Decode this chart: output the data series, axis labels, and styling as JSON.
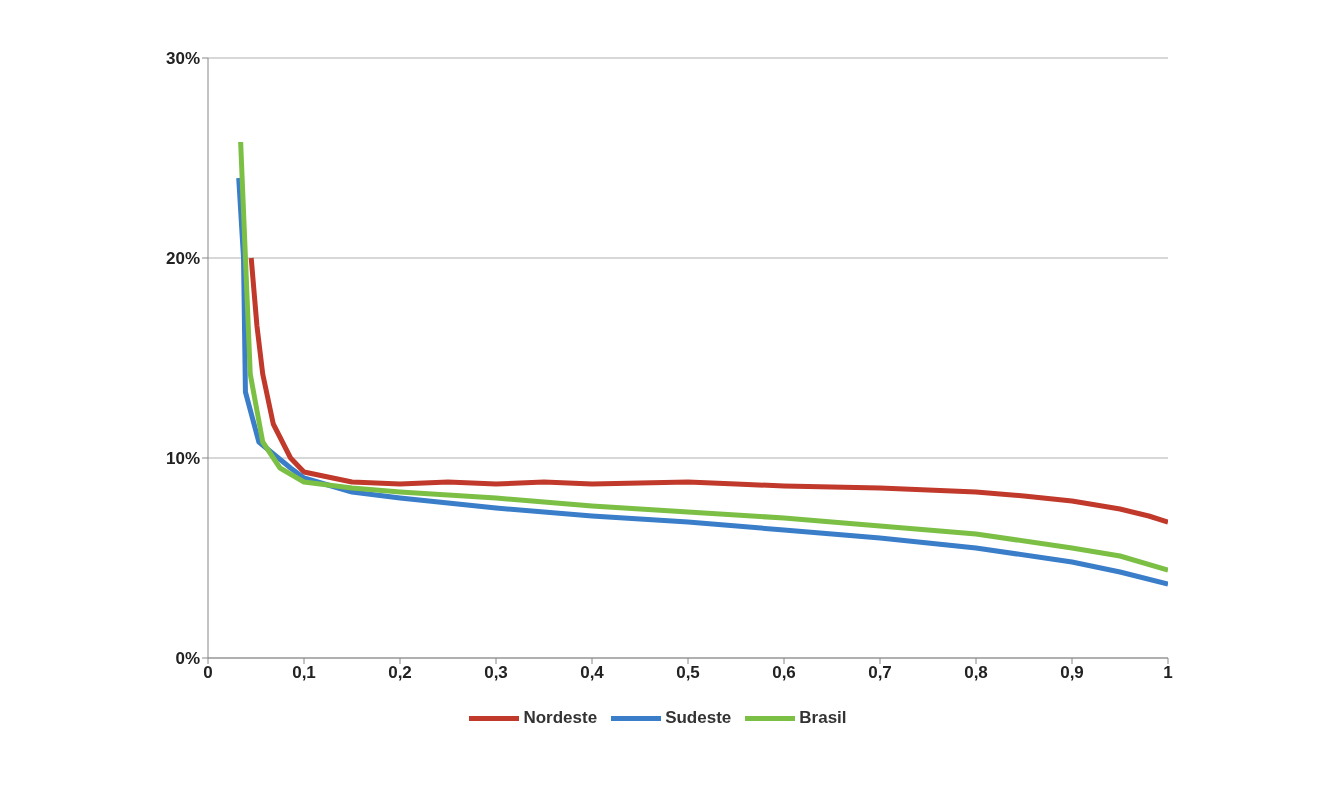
{
  "chart_data": {
    "type": "line",
    "xlim": [
      0,
      1
    ],
    "xticks": [
      0,
      {
        "value": 0.1,
        "label": "0,1"
      },
      {
        "value": 0.2,
        "label": "0,2"
      },
      {
        "value": 0.3,
        "label": "0,3"
      },
      {
        "value": 0.4,
        "label": "0,4"
      },
      {
        "value": 0.5,
        "label": "0,5"
      },
      {
        "value": 0.6,
        "label": "0,6"
      },
      {
        "value": 0.7,
        "label": "0,7"
      },
      {
        "value": 0.8,
        "label": "0,8"
      },
      {
        "value": 0.9,
        "label": "0,9"
      },
      1
    ],
    "ylim": [
      0,
      30
    ],
    "yticks": [
      {
        "value": 0,
        "label": "0%"
      },
      {
        "value": 10,
        "label": "10%"
      },
      {
        "value": 20,
        "label": "20%"
      },
      {
        "value": 30,
        "label": "30%"
      }
    ],
    "grid": "y",
    "legend": "bottom",
    "marker": "none",
    "line_style": "solid",
    "series": [
      {
        "name": "Nordeste",
        "color": "#c0392b",
        "x": [
          0.045,
          0.051,
          0.057,
          0.068,
          0.086,
          0.1,
          0.15,
          0.2,
          0.25,
          0.3,
          0.35,
          0.4,
          0.45,
          0.5,
          0.55,
          0.6,
          0.7,
          0.8,
          0.85,
          0.9,
          0.95,
          0.98,
          1.0
        ],
        "values": [
          20,
          16.6,
          14.2,
          11.7,
          10,
          9.3,
          8.8,
          8.7,
          8.8,
          8.7,
          8.8,
          8.7,
          8.75,
          8.8,
          8.7,
          8.6,
          8.5,
          8.3,
          8.1,
          7.85,
          7.45,
          7.1,
          6.8
        ]
      },
      {
        "name": "Sudeste",
        "color": "#3a7dc9",
        "x": [
          0.032,
          0.037,
          0.039,
          0.053,
          0.086,
          0.1,
          0.15,
          0.2,
          0.3,
          0.4,
          0.5,
          0.6,
          0.7,
          0.8,
          0.9,
          0.95,
          1.0
        ],
        "values": [
          24,
          20,
          13.3,
          10.8,
          9.5,
          9,
          8.3,
          8,
          7.5,
          7.1,
          6.8,
          6.4,
          6,
          5.5,
          4.8,
          4.3,
          3.7
        ]
      },
      {
        "name": "Brasil",
        "color": "#7cbf45",
        "x": [
          0.034,
          0.039,
          0.044,
          0.057,
          0.075,
          0.1,
          0.15,
          0.2,
          0.3,
          0.35,
          0.4,
          0.5,
          0.6,
          0.7,
          0.8,
          0.9,
          0.95,
          1.0
        ],
        "values": [
          25.8,
          20,
          14.2,
          10.8,
          9.5,
          8.8,
          8.5,
          8.3,
          8,
          7.8,
          7.6,
          7.3,
          7,
          6.6,
          6.2,
          5.5,
          5.1,
          4.4
        ]
      }
    ]
  }
}
